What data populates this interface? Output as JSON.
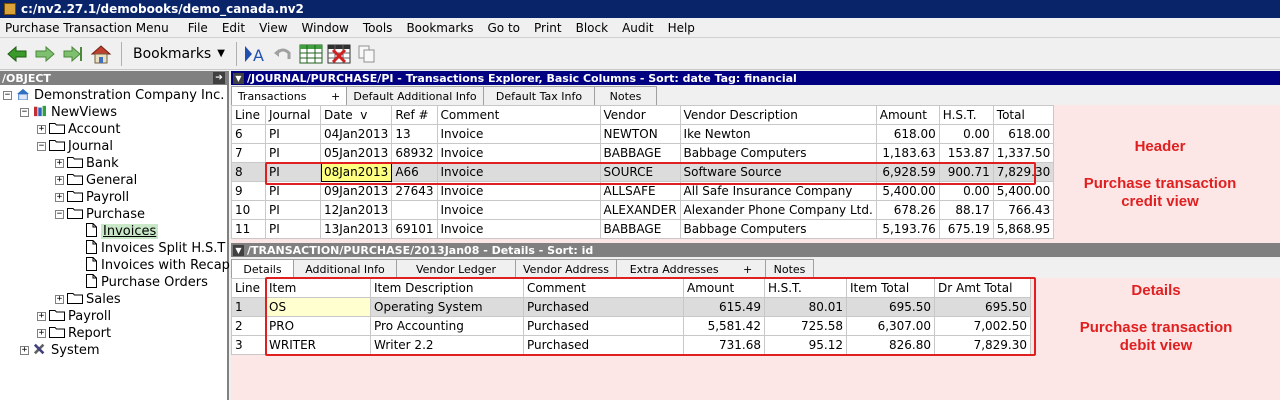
{
  "window": {
    "title": "c:/nv2.27.1/demobooks/demo_canada.nv2"
  },
  "menubar": {
    "items": [
      "Purchase Transaction Menu",
      "File",
      "Edit",
      "View",
      "Window",
      "Tools",
      "Bookmarks",
      "Go to",
      "Print",
      "Block",
      "Audit",
      "Help"
    ]
  },
  "toolbar": {
    "bookmarks_label": "Bookmarks",
    "bookmarks_caret": "▼",
    "icons": [
      "back-arrow-icon",
      "forward-arrow-icon",
      "next-arrow-icon",
      "home-icon",
      "find-icon",
      "undo-icon",
      "grid-icon",
      "delete-grid-icon",
      "copy-icon"
    ]
  },
  "tree": {
    "header": "/OBJECT",
    "nodes": [
      {
        "label": "Demonstration Company Inc.",
        "pm": "−",
        "icon": "house-icon"
      },
      {
        "label": "NewViews",
        "pm": "−",
        "icon": "books-icon"
      },
      {
        "label": "Account",
        "pm": "+",
        "icon": "folder-icon"
      },
      {
        "label": "Journal",
        "pm": "−",
        "icon": "folder-icon"
      },
      {
        "label": "Bank",
        "pm": "+",
        "icon": "folder-icon"
      },
      {
        "label": "General",
        "pm": "+",
        "icon": "folder-icon"
      },
      {
        "label": "Payroll",
        "pm": "+",
        "icon": "folder-icon"
      },
      {
        "label": "Purchase",
        "pm": "−",
        "icon": "folder-icon"
      },
      {
        "label": "Invoices",
        "pm": "",
        "icon": "document-icon"
      },
      {
        "label": "Invoices  Split H.S.T",
        "pm": "",
        "icon": "document-icon"
      },
      {
        "label": "Invoices  with Recap",
        "pm": "",
        "icon": "document-icon"
      },
      {
        "label": "Purchase Orders",
        "pm": "",
        "icon": "document-icon"
      },
      {
        "label": "Sales",
        "pm": "+",
        "icon": "folder-icon"
      },
      {
        "label": "Payroll",
        "pm": "+",
        "icon": "folder-icon"
      },
      {
        "label": "Report",
        "pm": "+",
        "icon": "folder-icon"
      },
      {
        "label": "System",
        "pm": "+",
        "icon": "tools-icon"
      }
    ]
  },
  "top_panel": {
    "header": "/JOURNAL/PURCHASE/PI - Transactions Explorer, Basic Columns - Sort: date  Tag: financial",
    "tabs": [
      "Transactions       +",
      "Default Additional Info",
      "Default Tax Info",
      "Notes"
    ],
    "columns": [
      "Line",
      "Journal",
      "Date  v",
      "Ref #",
      "Comment",
      "Vendor",
      "Vendor Description",
      "Amount",
      "H.S.T.",
      "Total"
    ],
    "rows": [
      [
        "6",
        "PI",
        "04Jan2013",
        "13",
        "Invoice",
        "NEWTON",
        "Ike Newton",
        "618.00",
        "0.00",
        "618.00"
      ],
      [
        "7",
        "PI",
        "05Jan2013",
        "68932",
        "Invoice",
        "BABBAGE",
        "Babbage Computers",
        "1,183.63",
        "153.87",
        "1,337.50"
      ],
      [
        "8",
        "PI",
        "08Jan2013",
        "A66",
        "Invoice",
        "SOURCE",
        "Software Source",
        "6,928.59",
        "900.71",
        "7,829.30"
      ],
      [
        "9",
        "PI",
        "09Jan2013",
        "27643",
        "Invoice",
        "ALLSAFE",
        "All Safe Insurance Company",
        "5,400.00",
        "0.00",
        "5,400.00"
      ],
      [
        "10",
        "PI",
        "12Jan2013",
        "",
        "Invoice",
        "ALEXANDER",
        "Alexander Phone Company Ltd.",
        "678.26",
        "88.17",
        "766.43"
      ],
      [
        "11",
        "PI",
        "13Jan2013",
        "69101",
        "Invoice",
        "BABBAGE",
        "Babbage Computers",
        "5,193.76",
        "675.19",
        "5,868.95"
      ]
    ]
  },
  "bottom_panel": {
    "header": "/TRANSACTION/PURCHASE/2013Jan08 - Details - Sort: id",
    "tabs": [
      "Details",
      "Additional Info",
      "Vendor Ledger",
      "Vendor Address",
      "Extra Addresses       +",
      "Notes"
    ],
    "columns": [
      "Line",
      "Item",
      "Item Description",
      "Comment",
      "Amount",
      "H.S.T.",
      "Item Total",
      "Dr Amt Total"
    ],
    "rows": [
      [
        "1",
        "OS",
        "Operating System",
        "Purchased",
        "615.49",
        "80.01",
        "695.50",
        "695.50"
      ],
      [
        "2",
        "PRO",
        "Pro Accounting",
        "Purchased",
        "5,581.42",
        "725.58",
        "6,307.00",
        "7,002.50"
      ],
      [
        "3",
        "WRITER",
        "Writer 2.2",
        "Purchased",
        "731.68",
        "95.12",
        "826.80",
        "7,829.30"
      ]
    ]
  },
  "annotations": {
    "header": "Header",
    "header_view_1": "Purchase transaction",
    "header_view_2": "credit view",
    "details": "Details",
    "details_view_1": "Purchase transaction",
    "details_view_2": "debit view"
  },
  "colors": {
    "title_bg": "#0a246a",
    "active_header": "#000080",
    "grid_bg": "#fde6e6",
    "highlight": "#e02020"
  }
}
